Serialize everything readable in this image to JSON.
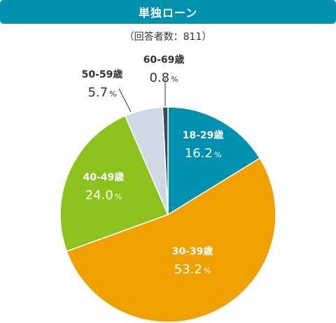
{
  "title": "単独ローン",
  "subtitle": "（回答者数：811）",
  "chart_data": {
    "type": "pie",
    "title": "単独ローン",
    "subtitle": "（回答者数：811）",
    "unit": "%",
    "slices": [
      {
        "label": "18-29歳",
        "value": 16.2,
        "color": "#0090b0",
        "label_color": "#ffffff"
      },
      {
        "label": "30-39歳",
        "value": 53.2,
        "color": "#f0a000",
        "label_color": "#ffffff"
      },
      {
        "label": "40-49歳",
        "value": 24.0,
        "color": "#8cc21e",
        "label_color": "#ffffff"
      },
      {
        "label": "50-59歳",
        "value": 5.7,
        "color": "#cfd8e3",
        "label_color": "#333333"
      },
      {
        "label": "60-69歳",
        "value": 0.8,
        "color": "#3a4858",
        "label_color": "#333333"
      }
    ]
  }
}
